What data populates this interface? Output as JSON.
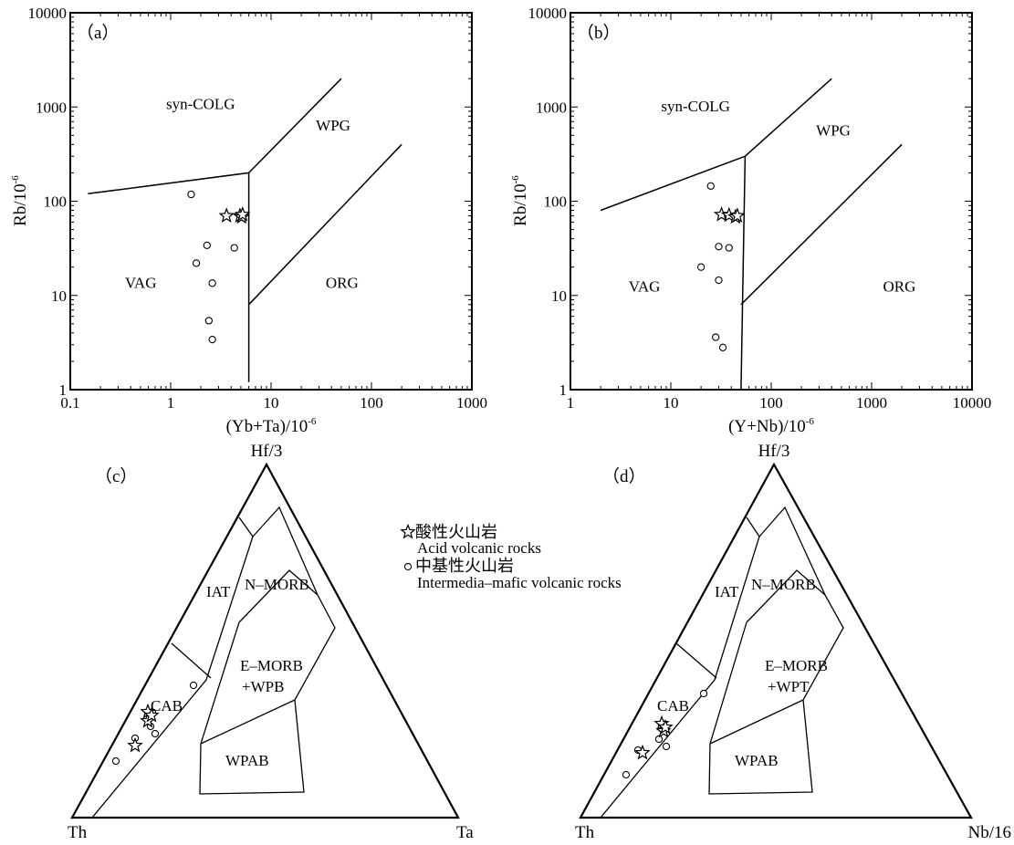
{
  "chart_data": [
    {
      "id": "a",
      "type": "scatter",
      "panel_label": "（a）",
      "x_scale": "log",
      "y_scale": "log",
      "xlim": [
        0.1,
        1000
      ],
      "ylim": [
        1,
        10000
      ],
      "x_ticks": [
        "0.1",
        "1",
        "10",
        "100",
        "1000"
      ],
      "y_ticks": [
        "1",
        "10",
        "100",
        "1000",
        "10000"
      ],
      "xlabel": "(Yb+Ta)/10",
      "xlabel_exp": "-6",
      "ylabel": "Rb/10",
      "ylabel_exp": "-6",
      "region_labels": [
        {
          "text": "syn-COLG",
          "x": 0.9,
          "y": 950
        },
        {
          "text": "WPG",
          "x": 28,
          "y": 560
        },
        {
          "text": "VAG",
          "x": 0.35,
          "y": 12
        },
        {
          "text": "ORG",
          "x": 35,
          "y": 12
        }
      ],
      "boundaries": [
        [
          [
            0.15,
            120
          ],
          [
            6,
            200
          ],
          [
            50,
            2000
          ]
        ],
        [
          [
            6,
            200
          ],
          [
            6,
            1.2
          ]
        ],
        [
          [
            6,
            8
          ],
          [
            200,
            400
          ]
        ]
      ],
      "series": [
        {
          "marker": "star",
          "points": [
            [
              3.6,
              70
            ],
            [
              4.9,
              70
            ],
            [
              5.1,
              68
            ],
            [
              5.2,
              72
            ]
          ]
        },
        {
          "marker": "circle",
          "points": [
            [
              1.6,
              118
            ],
            [
              2.3,
              34
            ],
            [
              1.8,
              22
            ],
            [
              4.3,
              32
            ],
            [
              2.6,
              13.5
            ],
            [
              2.4,
              5.4
            ],
            [
              2.6,
              3.4
            ]
          ]
        }
      ]
    },
    {
      "id": "b",
      "type": "scatter",
      "panel_label": "（b）",
      "x_scale": "log",
      "y_scale": "log",
      "xlim": [
        1,
        10000
      ],
      "ylim": [
        1,
        10000
      ],
      "x_ticks": [
        "1",
        "10",
        "100",
        "1000",
        "10000"
      ],
      "y_ticks": [
        "1",
        "10",
        "100",
        "1000",
        "10000"
      ],
      "xlabel": "(Y+Nb)/10",
      "xlabel_exp": "-6",
      "ylabel": "Rb/10",
      "ylabel_exp": "-6",
      "region_labels": [
        {
          "text": "syn-COLG",
          "x": 8,
          "y": 900
        },
        {
          "text": "WPG",
          "x": 280,
          "y": 500
        },
        {
          "text": "VAG",
          "x": 3.8,
          "y": 11
        },
        {
          "text": "ORG",
          "x": 1300,
          "y": 11
        }
      ],
      "boundaries": [
        [
          [
            2,
            80
          ],
          [
            55,
            300
          ],
          [
            400,
            2000
          ]
        ],
        [
          [
            55,
            300
          ],
          [
            50,
            1
          ]
        ],
        [
          [
            50,
            8
          ],
          [
            2000,
            400
          ]
        ]
      ],
      "series": [
        {
          "marker": "star",
          "points": [
            [
              32,
              72
            ],
            [
              38,
              71
            ],
            [
              44,
              68
            ],
            [
              46,
              70
            ]
          ]
        },
        {
          "marker": "circle",
          "points": [
            [
              25,
              145
            ],
            [
              30,
              33
            ],
            [
              38,
              32
            ],
            [
              20,
              20
            ],
            [
              30,
              14.5
            ],
            [
              28,
              3.6
            ],
            [
              33,
              2.8
            ]
          ]
        }
      ]
    },
    {
      "id": "c",
      "type": "ternary",
      "panel_label": "（c）",
      "vertices": {
        "top": "Hf/3",
        "left": "Th",
        "right": "Ta"
      },
      "region_labels": [
        "IAT",
        "N–MORB",
        "E–MORB",
        "+WPB",
        "CAB",
        "WPAB"
      ],
      "series": [
        {
          "marker": "star",
          "count": 4
        },
        {
          "marker": "circle",
          "count": 6
        }
      ]
    },
    {
      "id": "d",
      "type": "ternary",
      "panel_label": "（d）",
      "vertices": {
        "top": "Hf/3",
        "left": "Th",
        "right": "Nb/16"
      },
      "region_labels": [
        "IAT",
        "N–MORB",
        "E–MORB",
        "+WPT",
        "CAB",
        "WPAB"
      ],
      "series": [
        {
          "marker": "star",
          "count": 4
        },
        {
          "marker": "circle",
          "count": 6
        }
      ]
    }
  ],
  "legend": [
    {
      "marker": "star",
      "label_cn": "酸性火山岩",
      "label_en": "Acid volcanic rocks"
    },
    {
      "marker": "circle",
      "label_cn": "中基性火山岩",
      "label_en": "Intermedia–mafic volcanic rocks"
    }
  ]
}
